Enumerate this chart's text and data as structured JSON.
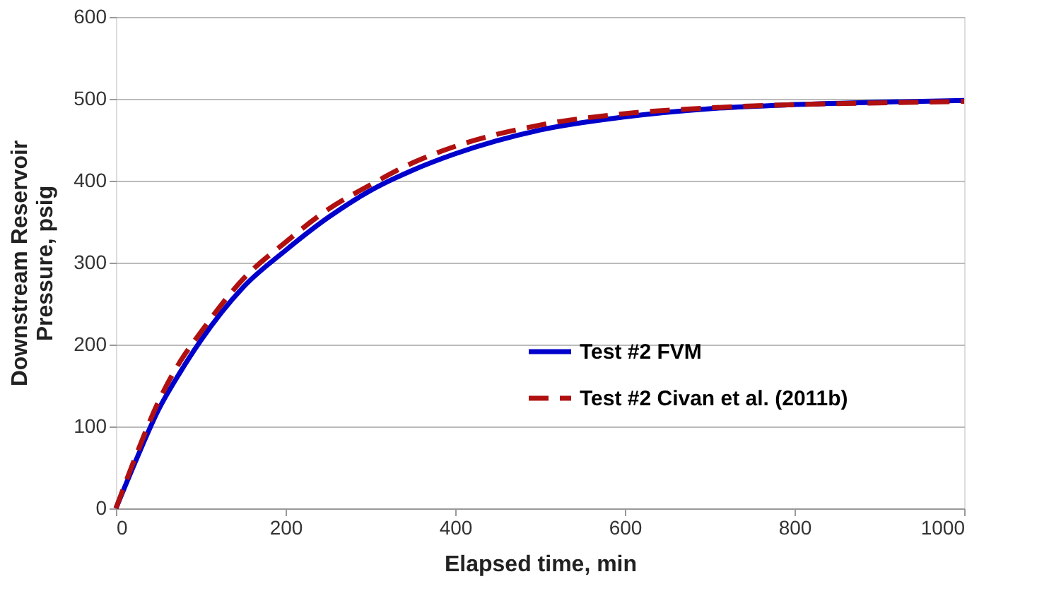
{
  "chart_data": {
    "type": "line",
    "xlabel": "Elapsed time, min",
    "ylabel": "Downstream Reservoir\nPressure, psig",
    "x": [
      0,
      25,
      50,
      75,
      100,
      150,
      200,
      250,
      300,
      350,
      400,
      500,
      600,
      700,
      800,
      900,
      1000
    ],
    "series": [
      {
        "name": "Test #2 FVM",
        "color": "#0000cc",
        "line_style": "solid",
        "values": [
          0,
          62,
          120,
          165,
          205,
          270,
          315,
          355,
          388,
          413,
          433,
          462,
          478,
          488,
          493,
          496,
          498
        ]
      },
      {
        "name": "Test #2 Civan et al. (2011b)",
        "color": "#b01010",
        "line_style": "dashed",
        "values": [
          0,
          68,
          130,
          178,
          215,
          280,
          325,
          365,
          395,
          422,
          442,
          468,
          482,
          489,
          493,
          495,
          497
        ]
      }
    ],
    "xlim": [
      0,
      1000
    ],
    "xticks": [
      0,
      200,
      400,
      600,
      800,
      1000
    ],
    "ylim": [
      0,
      600
    ],
    "yticks": [
      0,
      100,
      200,
      300,
      400,
      500,
      600
    ],
    "grid": "y",
    "legend": "right",
    "marker": "none"
  }
}
